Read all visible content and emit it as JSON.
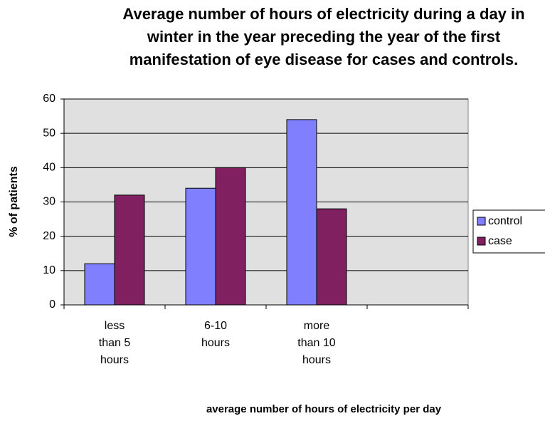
{
  "chart_data": {
    "type": "bar",
    "title": "Average number of hours of electricity during a day in winter in the year preceding the year of the first manifestation of eye disease for cases and controls.",
    "x_label": "average number of hours of electricity per day",
    "y_label": "% of patients",
    "categories": [
      "less than 5 hours",
      "6-10 hours",
      "more than 10 hours",
      null
    ],
    "series": [
      {
        "name": "control",
        "color": "#8080ff",
        "values": [
          12,
          34,
          54,
          null
        ]
      },
      {
        "name": "case",
        "color": "#802060",
        "values": [
          32,
          40,
          28,
          null
        ]
      }
    ],
    "ylim": [
      0,
      60
    ],
    "yticks": [
      0,
      10,
      20,
      30,
      40,
      50,
      60
    ],
    "grid": true,
    "legend": "right"
  }
}
